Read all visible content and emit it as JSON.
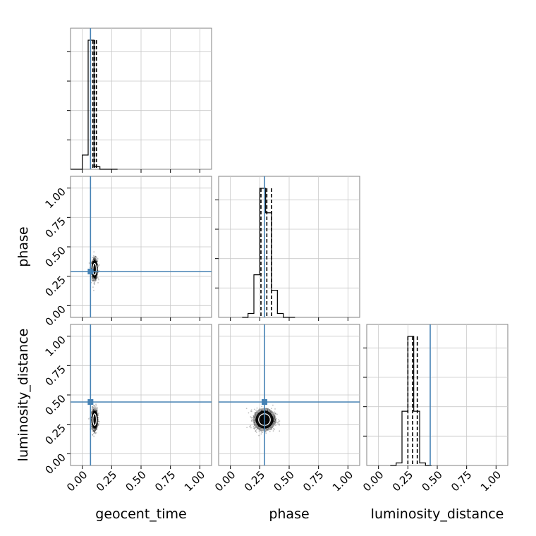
{
  "chart_data": {
    "type": "corner",
    "parameters": [
      "geocent_time",
      "phase",
      "luminosity_distance"
    ],
    "axis_range": [
      -0.1,
      1.1
    ],
    "tick_values": [
      0.0,
      0.25,
      0.5,
      0.75,
      1.0
    ],
    "tick_labels": [
      "0.00",
      "0.25",
      "0.50",
      "0.75",
      "1.00"
    ],
    "grid": true,
    "truths": {
      "geocent_time": 0.07,
      "phase": 0.29,
      "luminosity_distance": 0.44
    },
    "truth_color": "#4682b4",
    "histograms": [
      {
        "parameter": "geocent_time",
        "bin_edges": [
          -0.1,
          -0.05,
          0.0,
          0.05,
          0.1,
          0.15,
          0.2,
          0.25,
          0.3
        ],
        "counts": [
          0,
          0,
          0.11,
          1.0,
          0.02,
          0,
          0,
          0
        ],
        "quantiles": [
          0.09,
          0.105,
          0.12
        ]
      },
      {
        "parameter": "phase",
        "bin_edges": [
          0.1,
          0.15,
          0.2,
          0.25,
          0.3,
          0.35,
          0.4,
          0.45,
          0.5,
          0.55
        ],
        "counts": [
          0,
          0.03,
          0.33,
          1.0,
          0.81,
          0.21,
          0.03,
          0,
          0
        ],
        "quantiles": [
          0.26,
          0.31,
          0.35
        ]
      },
      {
        "parameter": "luminosity_distance",
        "bin_edges": [
          0.1,
          0.15,
          0.2,
          0.25,
          0.3,
          0.35,
          0.4,
          0.45
        ],
        "counts": [
          0,
          0.02,
          0.42,
          1.0,
          0.42,
          0.02,
          0
        ],
        "quantiles": [
          0.25,
          0.29,
          0.33
        ]
      }
    ],
    "scatter_panels": [
      {
        "x": "geocent_time",
        "y": "phase",
        "center": [
          0.105,
          0.31
        ],
        "spread": [
          0.013,
          0.045
        ]
      },
      {
        "x": "geocent_time",
        "y": "luminosity_distance",
        "center": [
          0.105,
          0.29
        ],
        "spread": [
          0.013,
          0.045
        ]
      },
      {
        "x": "phase",
        "y": "luminosity_distance",
        "center": [
          0.29,
          0.29
        ],
        "spread": [
          0.045,
          0.045
        ]
      }
    ],
    "xlabels": [
      "geocent_time",
      "phase",
      "luminosity_distance"
    ],
    "ylabels": [
      "",
      "phase",
      "luminosity_distance"
    ]
  }
}
